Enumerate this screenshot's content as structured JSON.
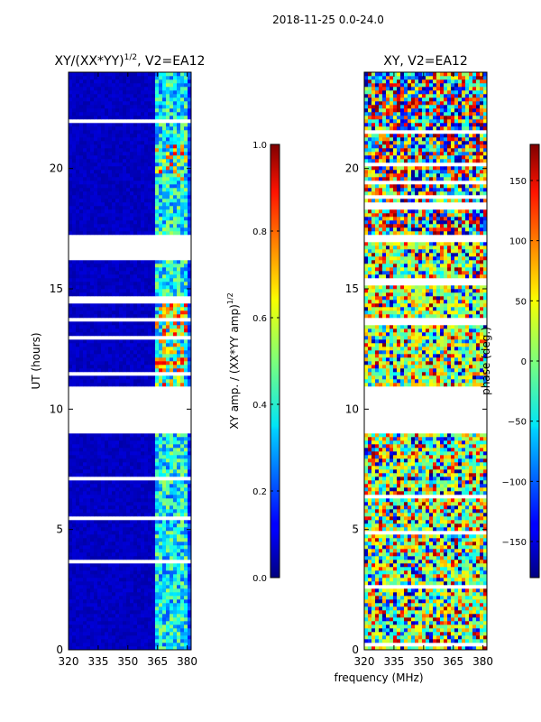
{
  "figure": {
    "suptitle": "2018-11-25 0.0-24.0",
    "xlabel": "frequency (MHz)"
  },
  "colorbar_amp": {
    "label_prefix": "XY amp. / (XX*YY amp)",
    "label_exp": "1/2",
    "ticks": [
      "0.0",
      "0.2",
      "0.4",
      "0.6",
      "0.8",
      "1.0"
    ],
    "range": [
      0.0,
      1.0
    ]
  },
  "colorbar_phase": {
    "label": "phase (deg.)",
    "ticks": [
      "−150",
      "−100",
      "−50",
      "0",
      "50",
      "100",
      "150"
    ],
    "range": [
      -180,
      180
    ]
  },
  "chart_data": [
    {
      "type": "heatmap",
      "title_prefix": "XY/(XX*YY)",
      "title_exp": "1/2",
      "title_suffix": ", V2=EA12",
      "xlabel": "",
      "ylabel": "UT (hours)",
      "xlim": [
        320,
        382
      ],
      "ylim": [
        0,
        24
      ],
      "xticks": [
        "320",
        "335",
        "350",
        "365",
        "380"
      ],
      "yticks": [
        "0",
        "5",
        "10",
        "15",
        "20"
      ],
      "value_range": [
        0.0,
        1.0
      ],
      "gaps_hours": [
        [
          9.0,
          10.9
        ],
        [
          16.2,
          17.3
        ]
      ],
      "description": "Low normalized amplitude (~0.05) below 364 MHz; elevated 0.2-0.9 in band 364-380 MHz"
    },
    {
      "type": "heatmap",
      "title": "XY, V2=EA12",
      "xlabel": "frequency (MHz)",
      "ylabel": "",
      "xlim": [
        320,
        382
      ],
      "ylim": [
        0,
        24
      ],
      "xticks": [
        "320",
        "335",
        "350",
        "365",
        "380"
      ],
      "yticks": [
        "0",
        "5",
        "10",
        "15",
        "20"
      ],
      "value_range": [
        -180,
        180
      ],
      "gaps_hours": [
        [
          9.0,
          10.9
        ],
        [
          17.0,
          17.3
        ],
        [
          15.2,
          15.5
        ]
      ],
      "description": "Noisy phase in degrees across full range"
    }
  ]
}
